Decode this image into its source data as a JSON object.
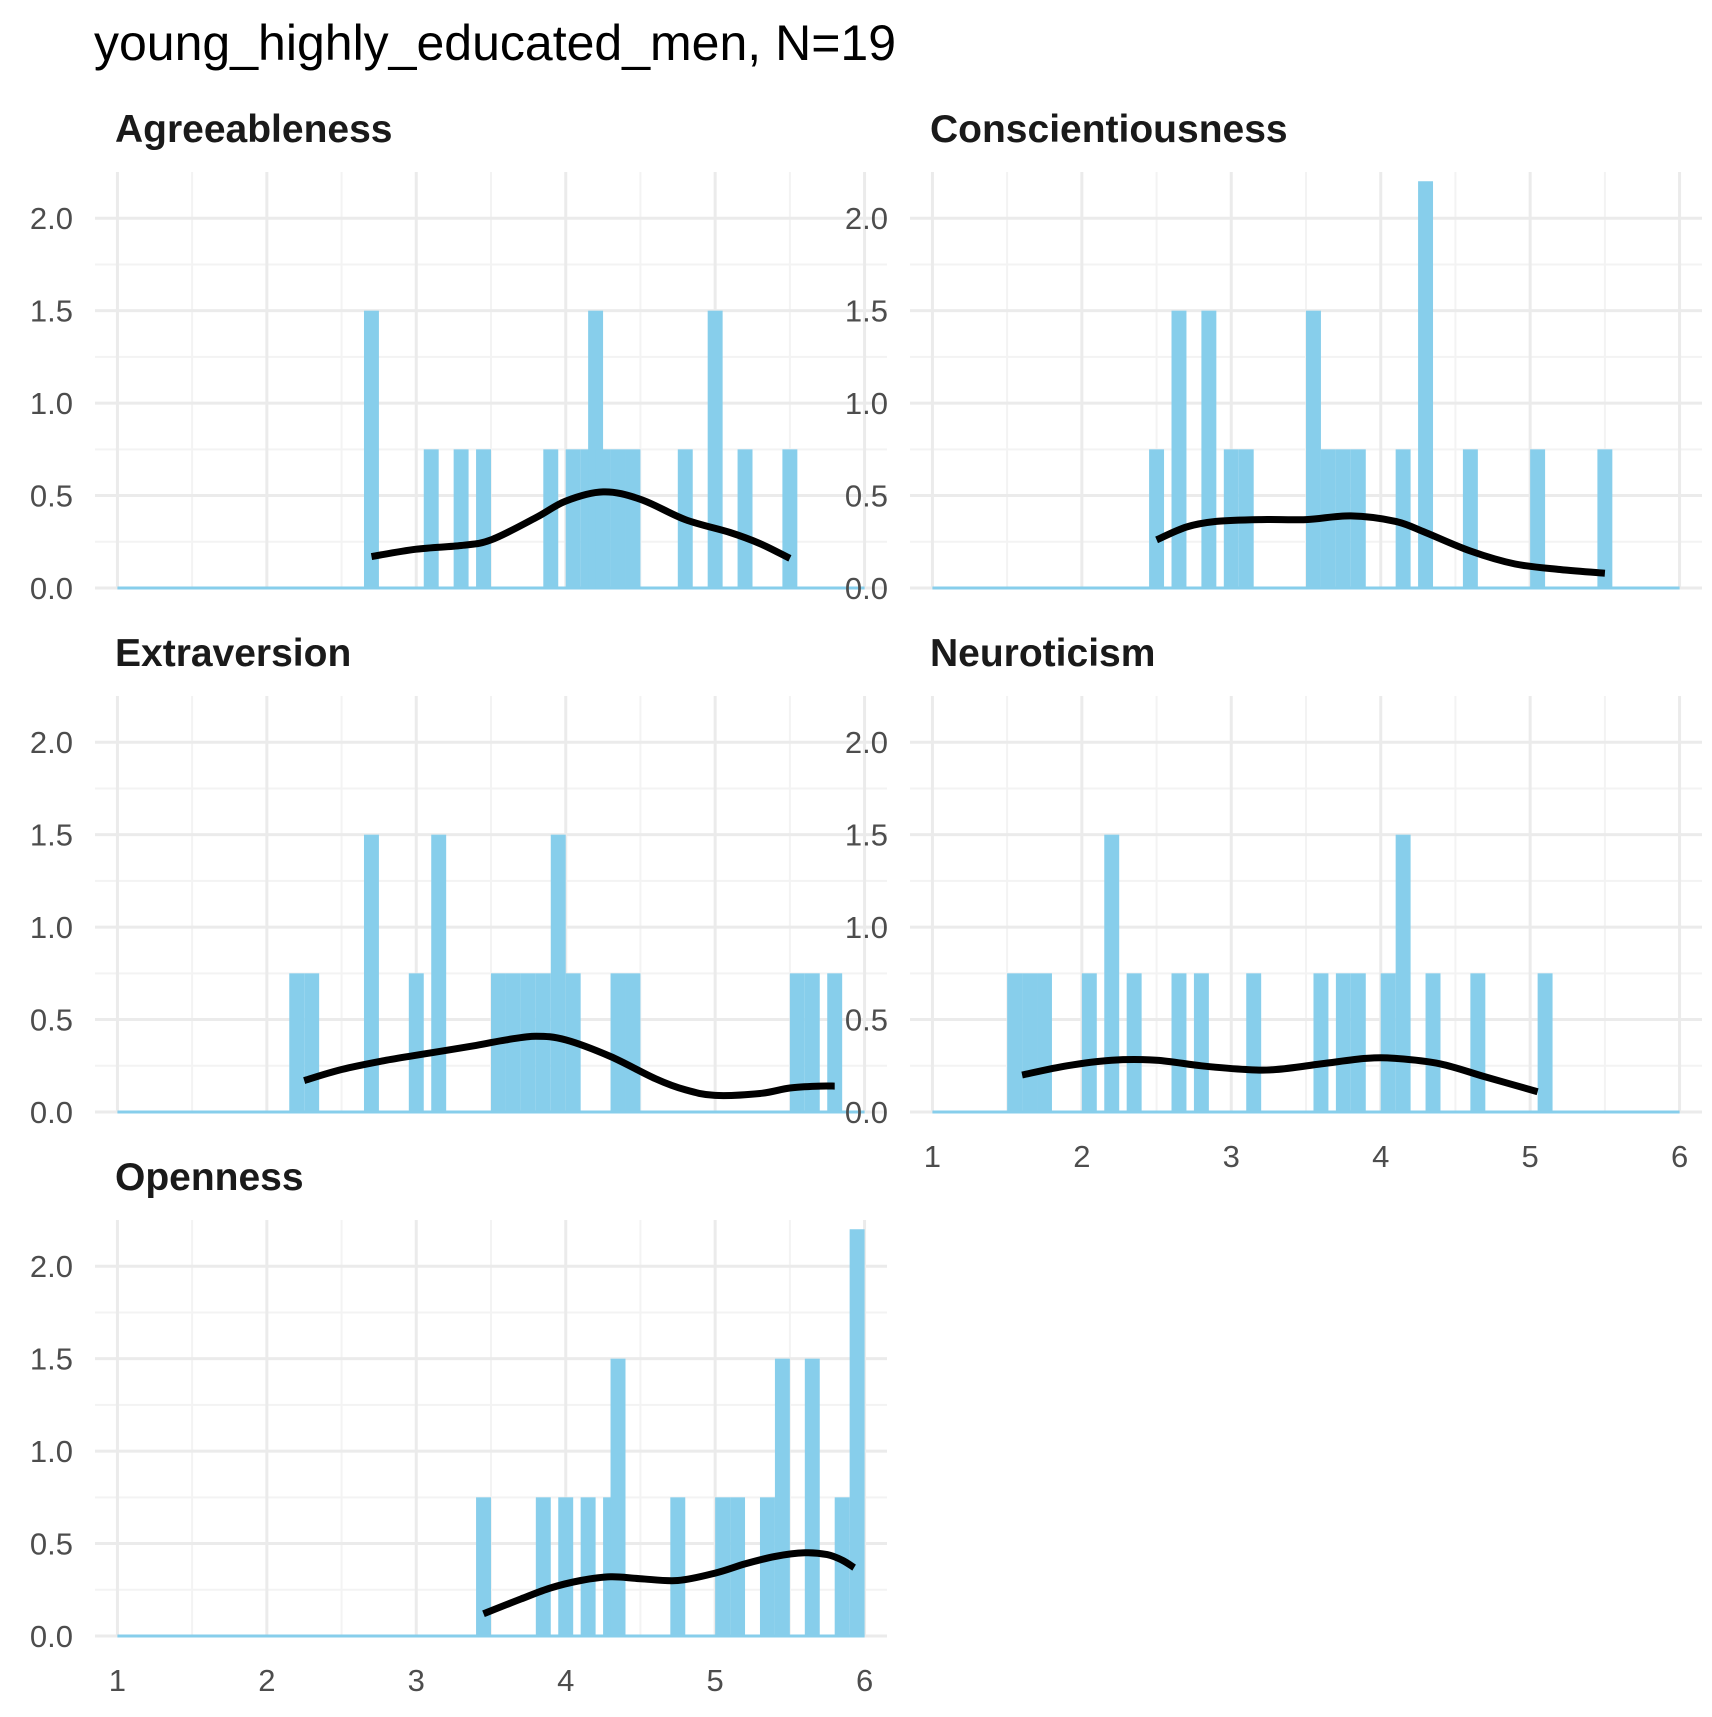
{
  "title": "young_highly_educated_men, N=19",
  "colors": {
    "bar": "#87ceeb",
    "density": "#000000",
    "grid_major": "#ebebeb",
    "grid_minor": "#f3f3f3",
    "axis_text": "#4d4d4d",
    "panel_title": "#1a1a1a"
  },
  "chart_data": {
    "type": "histogram+density",
    "x_ticks": [
      1,
      2,
      3,
      4,
      5,
      6
    ],
    "y_ticks": [
      "0.0",
      "0.5",
      "1.0",
      "1.5",
      "2.0"
    ],
    "y_tick_values": [
      0,
      0.5,
      1,
      1.5,
      2
    ],
    "xlim": [
      0.85,
      6.15
    ],
    "ylim": [
      0,
      2.25
    ],
    "bin_width": 0.1,
    "bin_start": 0.95,
    "grid": true,
    "panels": [
      {
        "name": "Agreeableness",
        "bars": [
          [
            2.7,
            1.5
          ],
          [
            3.1,
            0.75
          ],
          [
            3.3,
            0.75
          ],
          [
            3.45,
            0.75
          ],
          [
            3.9,
            0.75
          ],
          [
            4.05,
            0.75
          ],
          [
            4.15,
            0.75
          ],
          [
            4.2,
            1.5
          ],
          [
            4.25,
            0.75
          ],
          [
            4.35,
            0.75
          ],
          [
            4.45,
            0.75
          ],
          [
            4.8,
            0.75
          ],
          [
            5.0,
            1.5
          ],
          [
            5.2,
            0.75
          ],
          [
            5.5,
            0.75
          ]
        ],
        "density": [
          [
            2.7,
            0.17
          ],
          [
            3.0,
            0.21
          ],
          [
            3.3,
            0.23
          ],
          [
            3.5,
            0.26
          ],
          [
            3.8,
            0.38
          ],
          [
            4.0,
            0.47
          ],
          [
            4.25,
            0.52
          ],
          [
            4.5,
            0.48
          ],
          [
            4.8,
            0.37
          ],
          [
            5.1,
            0.3
          ],
          [
            5.3,
            0.24
          ],
          [
            5.5,
            0.16
          ]
        ]
      },
      {
        "name": "Conscientiousness",
        "bars": [
          [
            2.5,
            0.75
          ],
          [
            2.65,
            1.5
          ],
          [
            2.85,
            1.5
          ],
          [
            3.0,
            0.75
          ],
          [
            3.1,
            0.75
          ],
          [
            3.55,
            1.5
          ],
          [
            3.65,
            0.75
          ],
          [
            3.75,
            0.75
          ],
          [
            3.85,
            0.75
          ],
          [
            4.15,
            0.75
          ],
          [
            4.3,
            2.2
          ],
          [
            4.6,
            0.75
          ],
          [
            5.05,
            0.75
          ],
          [
            5.5,
            0.75
          ]
        ],
        "density": [
          [
            2.5,
            0.26
          ],
          [
            2.7,
            0.33
          ],
          [
            2.9,
            0.36
          ],
          [
            3.2,
            0.37
          ],
          [
            3.5,
            0.37
          ],
          [
            3.8,
            0.39
          ],
          [
            4.1,
            0.36
          ],
          [
            4.3,
            0.3
          ],
          [
            4.6,
            0.2
          ],
          [
            4.9,
            0.13
          ],
          [
            5.2,
            0.1
          ],
          [
            5.5,
            0.08
          ]
        ]
      },
      {
        "name": "Extraversion",
        "bars": [
          [
            2.2,
            0.75
          ],
          [
            2.3,
            0.75
          ],
          [
            2.7,
            1.5
          ],
          [
            3.0,
            0.75
          ],
          [
            3.15,
            1.5
          ],
          [
            3.55,
            0.75
          ],
          [
            3.65,
            0.75
          ],
          [
            3.75,
            0.75
          ],
          [
            3.85,
            0.75
          ],
          [
            3.95,
            1.5
          ],
          [
            4.05,
            0.75
          ],
          [
            4.35,
            0.75
          ],
          [
            4.45,
            0.75
          ],
          [
            5.55,
            0.75
          ],
          [
            5.65,
            0.75
          ],
          [
            5.8,
            0.75
          ]
        ],
        "density": [
          [
            2.25,
            0.17
          ],
          [
            2.5,
            0.23
          ],
          [
            2.8,
            0.28
          ],
          [
            3.1,
            0.32
          ],
          [
            3.4,
            0.36
          ],
          [
            3.6,
            0.39
          ],
          [
            3.8,
            0.41
          ],
          [
            4.0,
            0.39
          ],
          [
            4.3,
            0.3
          ],
          [
            4.6,
            0.18
          ],
          [
            4.8,
            0.12
          ],
          [
            5.0,
            0.09
          ],
          [
            5.3,
            0.1
          ],
          [
            5.5,
            0.13
          ],
          [
            5.7,
            0.14
          ],
          [
            5.8,
            0.14
          ]
        ]
      },
      {
        "name": "Neuroticism",
        "bars": [
          [
            1.55,
            0.75
          ],
          [
            1.65,
            0.75
          ],
          [
            1.75,
            0.75
          ],
          [
            2.05,
            0.75
          ],
          [
            2.2,
            1.5
          ],
          [
            2.35,
            0.75
          ],
          [
            2.65,
            0.75
          ],
          [
            2.8,
            0.75
          ],
          [
            3.15,
            0.75
          ],
          [
            3.6,
            0.75
          ],
          [
            3.75,
            0.75
          ],
          [
            3.85,
            0.75
          ],
          [
            4.05,
            0.75
          ],
          [
            4.15,
            1.5
          ],
          [
            4.35,
            0.75
          ],
          [
            4.65,
            0.75
          ],
          [
            5.1,
            0.75
          ]
        ],
        "density": [
          [
            1.6,
            0.2
          ],
          [
            1.9,
            0.25
          ],
          [
            2.2,
            0.28
          ],
          [
            2.5,
            0.28
          ],
          [
            2.8,
            0.25
          ],
          [
            3.1,
            0.23
          ],
          [
            3.3,
            0.23
          ],
          [
            3.6,
            0.26
          ],
          [
            3.9,
            0.29
          ],
          [
            4.1,
            0.29
          ],
          [
            4.4,
            0.26
          ],
          [
            4.7,
            0.19
          ],
          [
            5.05,
            0.11
          ]
        ]
      },
      {
        "name": "Openness",
        "bars": [
          [
            3.45,
            0.75
          ],
          [
            3.85,
            0.75
          ],
          [
            4.0,
            0.75
          ],
          [
            4.15,
            0.75
          ],
          [
            4.3,
            0.75
          ],
          [
            4.35,
            1.5
          ],
          [
            4.75,
            0.75
          ],
          [
            5.05,
            0.75
          ],
          [
            5.15,
            0.75
          ],
          [
            5.35,
            0.75
          ],
          [
            5.45,
            1.5
          ],
          [
            5.65,
            1.5
          ],
          [
            5.85,
            0.75
          ],
          [
            5.95,
            2.2
          ]
        ],
        "density": [
          [
            3.45,
            0.12
          ],
          [
            3.7,
            0.2
          ],
          [
            3.9,
            0.26
          ],
          [
            4.1,
            0.3
          ],
          [
            4.3,
            0.32
          ],
          [
            4.5,
            0.31
          ],
          [
            4.75,
            0.3
          ],
          [
            5.0,
            0.34
          ],
          [
            5.2,
            0.39
          ],
          [
            5.4,
            0.43
          ],
          [
            5.6,
            0.45
          ],
          [
            5.75,
            0.44
          ],
          [
            5.85,
            0.41
          ],
          [
            5.93,
            0.37
          ]
        ]
      }
    ]
  }
}
